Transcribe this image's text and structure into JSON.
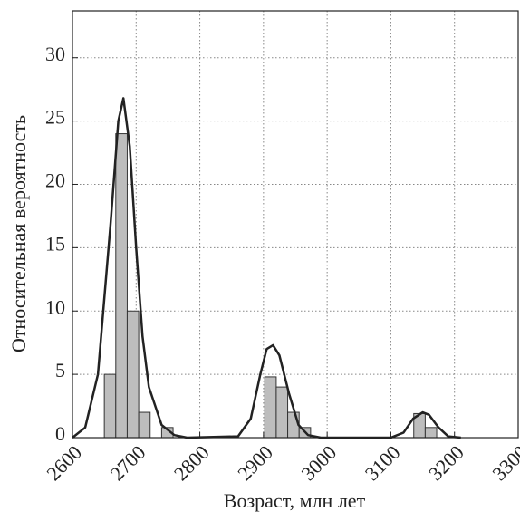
{
  "chart_data": {
    "type": "histogram",
    "x_label": "Возраст, млн лет",
    "y_label": "Относительная вероятность",
    "bins": [
      2650,
      2668,
      2686,
      2704,
      2722,
      2740,
      2758,
      2776,
      2794,
      2812,
      2830,
      2848,
      2866,
      2884,
      2902,
      2920,
      2938,
      2956,
      2974,
      2992,
      3010,
      3028,
      3046,
      3064,
      3082,
      3100,
      3118,
      3136,
      3154,
      3172,
      3190
    ],
    "counts": [
      5,
      24,
      10,
      2,
      0,
      0.8,
      0,
      0,
      0,
      0,
      0,
      0,
      0,
      0,
      4.8,
      4,
      2,
      0.8,
      0,
      0,
      0,
      0,
      0,
      0,
      0,
      0,
      0,
      1.9,
      0.8,
      0
    ],
    "color": "#bdbdbd",
    "curve": {
      "x": [
        2600,
        2620,
        2640,
        2660,
        2672,
        2680,
        2690,
        2700,
        2710,
        2720,
        2740,
        2760,
        2780,
        2860,
        2880,
        2895,
        2905,
        2915,
        2925,
        2940,
        2955,
        2970,
        2990,
        3100,
        3120,
        3135,
        3150,
        3160,
        3175,
        3190,
        3210
      ],
      "values": [
        0,
        0.8,
        5,
        17,
        25,
        26.8,
        23,
        15,
        8,
        4,
        1,
        0.2,
        0,
        0.1,
        1.5,
        5,
        7,
        7.3,
        6.5,
        3.5,
        1,
        0.2,
        0,
        0,
        0.4,
        1.5,
        2,
        1.8,
        0.8,
        0.1,
        0
      ],
      "color": "#222222"
    },
    "xlim": [
      2600,
      3300
    ],
    "xticks": [
      2600,
      2700,
      2800,
      2900,
      3000,
      3100,
      3200,
      3300
    ],
    "ylim": [
      0,
      33.7
    ],
    "yticks": [
      0,
      5,
      10,
      15,
      20,
      25,
      30
    ],
    "grid": true
  }
}
